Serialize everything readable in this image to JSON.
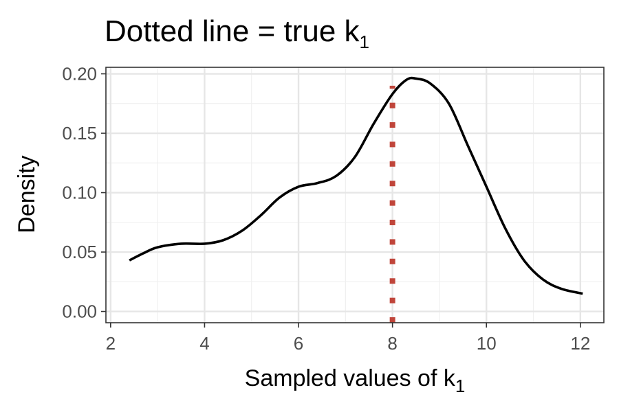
{
  "chart_data": {
    "type": "line",
    "title": {
      "main": "Dotted line = true  k",
      "subscript": "1"
    },
    "xlabel": {
      "main": "Sampled values of  k",
      "subscript": "1"
    },
    "ylabel": "Density",
    "xlim": [
      1.9,
      12.5
    ],
    "ylim": [
      -0.0095,
      0.2055
    ],
    "x_ticks": [
      2,
      4,
      6,
      8,
      10,
      12
    ],
    "x_tick_labels": [
      "2",
      "4",
      "6",
      "8",
      "10",
      "12"
    ],
    "x_minor_ticks": [
      3,
      5,
      7,
      9,
      11
    ],
    "y_ticks": [
      0.0,
      0.05,
      0.1,
      0.15,
      0.2
    ],
    "y_tick_labels": [
      "0.00",
      "0.05",
      "0.10",
      "0.15",
      "0.20"
    ],
    "y_minor_ticks": [
      0.025,
      0.075,
      0.125,
      0.175
    ],
    "grid": true,
    "legend": "none",
    "series": [
      {
        "points": [
          [
            2.4,
            0.043
          ],
          [
            2.7,
            0.049
          ],
          [
            3.0,
            0.054
          ],
          [
            3.5,
            0.057
          ],
          [
            4.0,
            0.057
          ],
          [
            4.4,
            0.06
          ],
          [
            4.8,
            0.068
          ],
          [
            5.2,
            0.081
          ],
          [
            5.6,
            0.096
          ],
          [
            6.0,
            0.105
          ],
          [
            6.4,
            0.108
          ],
          [
            6.8,
            0.114
          ],
          [
            7.2,
            0.13
          ],
          [
            7.6,
            0.158
          ],
          [
            8.0,
            0.183
          ],
          [
            8.3,
            0.195
          ],
          [
            8.5,
            0.196
          ],
          [
            8.8,
            0.192
          ],
          [
            9.2,
            0.175
          ],
          [
            9.6,
            0.14
          ],
          [
            10.0,
            0.105
          ],
          [
            10.4,
            0.07
          ],
          [
            10.8,
            0.043
          ],
          [
            11.2,
            0.027
          ],
          [
            11.6,
            0.019
          ],
          [
            12.05,
            0.015
          ]
        ],
        "color": "#000000",
        "style": "solid"
      }
    ],
    "reference_line": {
      "x": 8,
      "style": "dotted",
      "color": "#c0453a",
      "y_from": -0.0095,
      "y_to": 0.19
    }
  }
}
